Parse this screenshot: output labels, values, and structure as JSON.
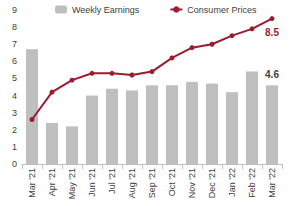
{
  "chart_data": {
    "type": "bar",
    "categories": [
      "Mar '21",
      "Apr '21",
      "May '21",
      "Jun '21",
      "Jul '21",
      "Aug '21",
      "Sep '21",
      "Oct '21",
      "Nov '21",
      "Dec '21",
      "Jan '22",
      "Feb '22",
      "Mar '22"
    ],
    "series": [
      {
        "name": "Weekly Earnings",
        "type": "bar",
        "color": "#bfbfbf",
        "values": [
          6.7,
          2.4,
          2.2,
          4.0,
          4.4,
          4.3,
          4.6,
          4.6,
          4.8,
          4.7,
          4.2,
          5.4,
          4.6
        ],
        "value_labels": [
          null,
          null,
          null,
          null,
          null,
          null,
          null,
          null,
          null,
          null,
          null,
          null,
          "4.6"
        ]
      },
      {
        "name": "Consumer Prices",
        "type": "line",
        "color": "#9b1c31",
        "marker": "circle",
        "values": [
          2.6,
          4.2,
          4.9,
          5.3,
          5.3,
          5.2,
          5.4,
          6.2,
          6.8,
          7.0,
          7.5,
          7.9,
          8.5
        ],
        "value_labels": [
          null,
          null,
          null,
          null,
          null,
          null,
          null,
          null,
          null,
          null,
          null,
          null,
          "8.5"
        ]
      }
    ],
    "ylim": [
      0,
      9
    ],
    "yticks": [
      0,
      1,
      2,
      3,
      4,
      5,
      6,
      7,
      8,
      9
    ],
    "grid": false,
    "legend": "top"
  }
}
